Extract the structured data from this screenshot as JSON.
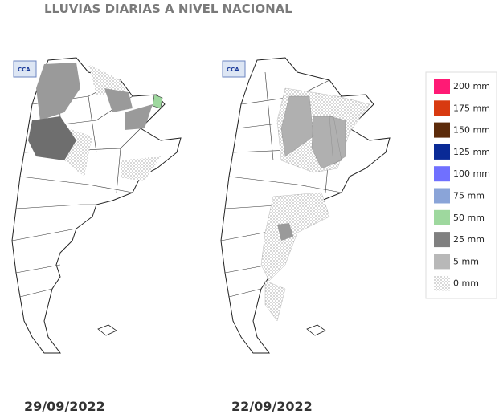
{
  "header": {
    "title": "LLUVIAS DIARIAS A NIVEL NACIONAL"
  },
  "maps": [
    {
      "logo": "CCA",
      "date": "29/09/2022"
    },
    {
      "logo": "CCA",
      "date": "22/09/2022"
    }
  ],
  "legend": [
    {
      "label": "200 mm",
      "color": "#ff1a75"
    },
    {
      "label": "175 mm",
      "color": "#d83a10"
    },
    {
      "label": "150 mm",
      "color": "#5c2b0a"
    },
    {
      "label": "125 mm",
      "color": "#0a2a96"
    },
    {
      "label": "100 mm",
      "color": "#7070ff"
    },
    {
      "label": "75 mm",
      "color": "#8aa4d8"
    },
    {
      "label": "50 mm",
      "color": "#9ed89e"
    },
    {
      "label": "25 mm",
      "color": "#808080"
    },
    {
      "label": "5 mm",
      "color": "#b8b8b8"
    },
    {
      "label": "0 mm",
      "color": "dots"
    }
  ]
}
